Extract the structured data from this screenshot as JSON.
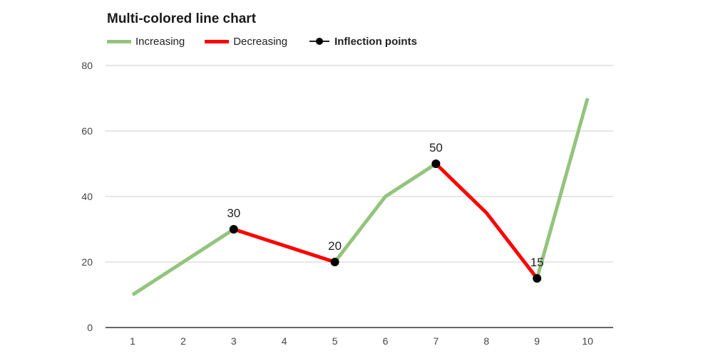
{
  "chart_data": {
    "type": "line",
    "title": "Multi-colored line chart",
    "xlabel": "",
    "ylabel": "",
    "x": [
      1,
      2,
      3,
      4,
      5,
      6,
      7,
      8,
      9,
      10
    ],
    "y": [
      10,
      20,
      30,
      25,
      20,
      40,
      50,
      35,
      15,
      70
    ],
    "ylim": [
      0,
      80
    ],
    "yticks": [
      0,
      20,
      40,
      60,
      80
    ],
    "grid": true,
    "legend_position": "top-left",
    "legend": [
      {
        "label": "Increasing",
        "type": "line",
        "color": "#93c47d"
      },
      {
        "label": "Decreasing",
        "type": "line",
        "color": "#ff0000"
      },
      {
        "label": "Inflection points",
        "type": "marker",
        "color": "#000000"
      }
    ],
    "segments": [
      {
        "from_x": 1,
        "to_x": 3,
        "trend": "increasing"
      },
      {
        "from_x": 3,
        "to_x": 5,
        "trend": "decreasing"
      },
      {
        "from_x": 5,
        "to_x": 7,
        "trend": "increasing"
      },
      {
        "from_x": 7,
        "to_x": 9,
        "trend": "decreasing"
      },
      {
        "from_x": 9,
        "to_x": 10,
        "trend": "increasing"
      }
    ],
    "inflection_points": [
      {
        "x": 3,
        "y": 30,
        "label": "30"
      },
      {
        "x": 5,
        "y": 20,
        "label": "20"
      },
      {
        "x": 7,
        "y": 50,
        "label": "50"
      },
      {
        "x": 9,
        "y": 15,
        "label": "15"
      }
    ]
  }
}
